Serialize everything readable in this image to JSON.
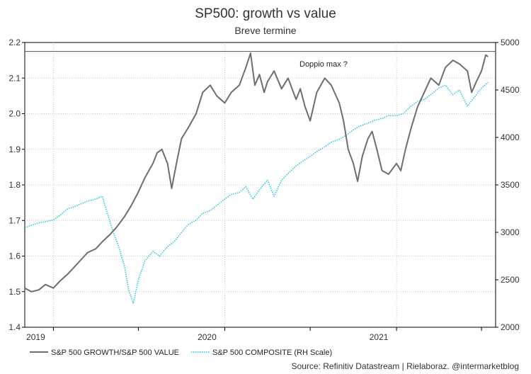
{
  "chart_data": {
    "type": "line",
    "title": "SP500: growth vs value",
    "subtitle": "Breve termine",
    "source": "Source: Refinitiv Datastream | Rielaboraz. @intermarketblog",
    "annotation": "Doppio max ?",
    "reference_line": 2.175,
    "grid": true,
    "legend_position": "bottom-left",
    "x_axis": {
      "range": [
        "2018-11-01",
        "2021-07-31"
      ],
      "tick_labels": [
        "2019",
        "2020",
        "2021"
      ],
      "year_starts": [
        "2019-01-01",
        "2020-01-01",
        "2021-01-01"
      ],
      "minor_ticks": [
        "2019-07-01",
        "2020-07-01",
        "2021-07-01"
      ]
    },
    "y_left": {
      "range": [
        1.4,
        2.2
      ],
      "ticks": [
        "1.4",
        "1.5",
        "1.6",
        "1.7",
        "1.8",
        "1.9",
        "2.0",
        "2.1",
        "2.2"
      ]
    },
    "y_right": {
      "label": "",
      "range": [
        2000,
        5000
      ],
      "ticks": [
        "2000",
        "2500",
        "3000",
        "3500",
        "4000",
        "4500",
        "5000"
      ]
    },
    "series": [
      {
        "name": "S&P 500 GROWTH/S&P 500 VALUE",
        "axis": "left",
        "color": "#6e6e6e",
        "style": "solid",
        "points": [
          [
            "2018-11-01",
            1.51
          ],
          [
            "2018-11-15",
            1.5
          ],
          [
            "2018-12-01",
            1.505
          ],
          [
            "2018-12-15",
            1.52
          ],
          [
            "2019-01-01",
            1.51
          ],
          [
            "2019-01-15",
            1.53
          ],
          [
            "2019-02-01",
            1.55
          ],
          [
            "2019-02-15",
            1.57
          ],
          [
            "2019-03-01",
            1.59
          ],
          [
            "2019-03-15",
            1.61
          ],
          [
            "2019-04-01",
            1.62
          ],
          [
            "2019-04-15",
            1.64
          ],
          [
            "2019-05-01",
            1.66
          ],
          [
            "2019-05-15",
            1.68
          ],
          [
            "2019-06-01",
            1.71
          ],
          [
            "2019-06-15",
            1.74
          ],
          [
            "2019-07-01",
            1.78
          ],
          [
            "2019-07-15",
            1.82
          ],
          [
            "2019-08-01",
            1.86
          ],
          [
            "2019-08-10",
            1.89
          ],
          [
            "2019-08-20",
            1.9
          ],
          [
            "2019-09-01",
            1.86
          ],
          [
            "2019-09-10",
            1.79
          ],
          [
            "2019-09-20",
            1.86
          ],
          [
            "2019-10-01",
            1.93
          ],
          [
            "2019-10-15",
            1.96
          ],
          [
            "2019-11-01",
            2.0
          ],
          [
            "2019-11-15",
            2.06
          ],
          [
            "2019-12-01",
            2.08
          ],
          [
            "2019-12-15",
            2.05
          ],
          [
            "2020-01-01",
            2.03
          ],
          [
            "2020-01-15",
            2.06
          ],
          [
            "2020-02-01",
            2.08
          ],
          [
            "2020-02-15",
            2.13
          ],
          [
            "2020-02-25",
            2.17
          ],
          [
            "2020-03-05",
            2.08
          ],
          [
            "2020-03-15",
            2.11
          ],
          [
            "2020-03-25",
            2.06
          ],
          [
            "2020-04-01",
            2.09
          ],
          [
            "2020-04-15",
            2.12
          ],
          [
            "2020-05-01",
            2.07
          ],
          [
            "2020-05-15",
            2.1
          ],
          [
            "2020-06-01",
            2.04
          ],
          [
            "2020-06-10",
            2.07
          ],
          [
            "2020-06-20",
            2.02
          ],
          [
            "2020-07-01",
            1.98
          ],
          [
            "2020-07-15",
            2.06
          ],
          [
            "2020-08-01",
            2.1
          ],
          [
            "2020-08-15",
            2.08
          ],
          [
            "2020-09-01",
            2.03
          ],
          [
            "2020-09-10",
            1.98
          ],
          [
            "2020-09-20",
            1.9
          ],
          [
            "2020-10-01",
            1.86
          ],
          [
            "2020-10-10",
            1.81
          ],
          [
            "2020-10-20",
            1.88
          ],
          [
            "2020-11-01",
            1.93
          ],
          [
            "2020-11-10",
            1.95
          ],
          [
            "2020-11-20",
            1.9
          ],
          [
            "2020-12-01",
            1.84
          ],
          [
            "2020-12-15",
            1.83
          ],
          [
            "2021-01-01",
            1.86
          ],
          [
            "2021-01-10",
            1.84
          ],
          [
            "2021-01-20",
            1.9
          ],
          [
            "2021-02-01",
            1.96
          ],
          [
            "2021-02-15",
            2.02
          ],
          [
            "2021-03-01",
            2.06
          ],
          [
            "2021-03-15",
            2.1
          ],
          [
            "2021-04-01",
            2.08
          ],
          [
            "2021-04-15",
            2.13
          ],
          [
            "2021-05-01",
            2.15
          ],
          [
            "2021-05-15",
            2.14
          ],
          [
            "2021-06-01",
            2.12
          ],
          [
            "2021-06-10",
            2.06
          ],
          [
            "2021-06-20",
            2.09
          ],
          [
            "2021-07-01",
            2.12
          ],
          [
            "2021-07-10",
            2.165
          ],
          [
            "2021-07-15",
            2.16
          ]
        ]
      },
      {
        "name": "S&P 500 COMPOSITE (RH Scale)",
        "axis": "right",
        "color": "#1cc6e0",
        "style": "dotted",
        "points": [
          [
            "2018-11-01",
            3050
          ],
          [
            "2018-12-01",
            3100
          ],
          [
            "2019-01-01",
            3130
          ],
          [
            "2019-01-15",
            3180
          ],
          [
            "2019-02-01",
            3250
          ],
          [
            "2019-02-15",
            3270
          ],
          [
            "2019-03-01",
            3300
          ],
          [
            "2019-03-15",
            3330
          ],
          [
            "2019-04-01",
            3350
          ],
          [
            "2019-04-15",
            3380
          ],
          [
            "2019-05-01",
            3120
          ],
          [
            "2019-05-10",
            2980
          ],
          [
            "2019-05-20",
            2850
          ],
          [
            "2019-06-01",
            2650
          ],
          [
            "2019-06-10",
            2400
          ],
          [
            "2019-06-20",
            2250
          ],
          [
            "2019-07-01",
            2500
          ],
          [
            "2019-07-15",
            2700
          ],
          [
            "2019-08-01",
            2800
          ],
          [
            "2019-08-15",
            2750
          ],
          [
            "2019-09-01",
            2850
          ],
          [
            "2019-09-15",
            2900
          ],
          [
            "2019-10-01",
            3000
          ],
          [
            "2019-10-15",
            3080
          ],
          [
            "2019-11-01",
            3130
          ],
          [
            "2019-11-15",
            3200
          ],
          [
            "2019-12-01",
            3230
          ],
          [
            "2020-01-01",
            3350
          ],
          [
            "2020-01-15",
            3400
          ],
          [
            "2020-02-01",
            3420
          ],
          [
            "2020-02-15",
            3480
          ],
          [
            "2020-03-01",
            3350
          ],
          [
            "2020-03-15",
            3450
          ],
          [
            "2020-04-01",
            3550
          ],
          [
            "2020-04-15",
            3380
          ],
          [
            "2020-05-01",
            3550
          ],
          [
            "2020-05-15",
            3620
          ],
          [
            "2020-06-01",
            3700
          ],
          [
            "2020-06-15",
            3750
          ],
          [
            "2020-07-01",
            3800
          ],
          [
            "2020-07-15",
            3850
          ],
          [
            "2020-08-01",
            3900
          ],
          [
            "2020-08-15",
            3950
          ],
          [
            "2020-09-01",
            3980
          ],
          [
            "2020-09-15",
            4020
          ],
          [
            "2020-10-01",
            4080
          ],
          [
            "2020-10-15",
            4120
          ],
          [
            "2020-11-01",
            4150
          ],
          [
            "2020-11-15",
            4180
          ],
          [
            "2020-12-01",
            4200
          ],
          [
            "2020-12-15",
            4230
          ],
          [
            "2021-01-01",
            4230
          ],
          [
            "2021-01-15",
            4250
          ],
          [
            "2021-02-01",
            4330
          ],
          [
            "2021-02-15",
            4380
          ],
          [
            "2021-03-01",
            4400
          ],
          [
            "2021-03-15",
            4450
          ],
          [
            "2021-04-01",
            4520
          ],
          [
            "2021-04-15",
            4550
          ],
          [
            "2021-05-01",
            4450
          ],
          [
            "2021-05-15",
            4500
          ],
          [
            "2021-06-01",
            4330
          ],
          [
            "2021-06-15",
            4420
          ],
          [
            "2021-07-01",
            4520
          ],
          [
            "2021-07-15",
            4580
          ]
        ]
      }
    ]
  }
}
